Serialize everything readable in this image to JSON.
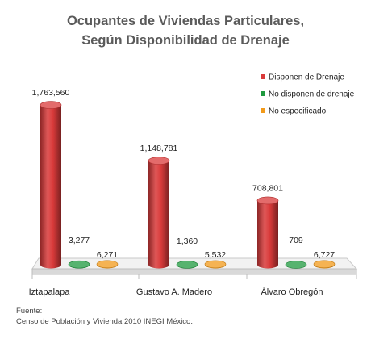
{
  "chart_data": {
    "type": "bar",
    "title": "Ocupantes de Viviendas Particulares,",
    "subtitle": "Según Disponibilidad de Drenaje",
    "categories": [
      "Iztapalapa",
      "Gustavo A. Madero",
      "Álvaro Obregón"
    ],
    "series": [
      {
        "name": "Disponen de Drenaje",
        "color": "#d93a3a",
        "values": [
          1763560,
          1148781,
          708801
        ]
      },
      {
        "name": "No disponen de drenaje",
        "color": "#1f9a3f",
        "values": [
          3277,
          1360,
          709
        ]
      },
      {
        "name": "No especificado",
        "color": "#f29a1a",
        "values": [
          6271,
          5532,
          6727
        ]
      }
    ],
    "data_labels": [
      [
        "1,763,560",
        "3,277",
        "6,271"
      ],
      [
        "1,148,781",
        "1,360",
        "5,532"
      ],
      [
        "708,801",
        "709",
        "6,727"
      ]
    ],
    "legend_position": "top-right",
    "grid": false,
    "ylim": [
      0,
      1800000
    ]
  },
  "source": {
    "line1": "Fuente:",
    "line2": "Censo de Población y Vivienda 2010 INEGI México."
  }
}
